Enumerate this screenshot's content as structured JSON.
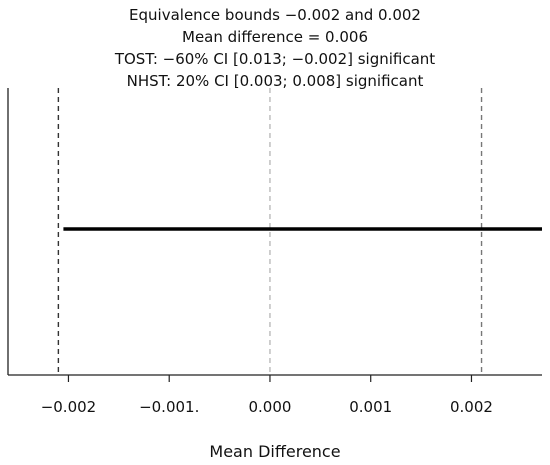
{
  "chart_data": {
    "type": "line",
    "title_lines": [
      "Equivalence bounds −0.002 and 0.002",
      "Mean difference = 0.006",
      "TOST: −60% CI [0.013; −0.002] significant",
      "NHST: 20% CI [0.003; 0.008] significant"
    ],
    "xlabel": "Mean Difference",
    "ylabel": "",
    "xlim": [
      -0.0026,
      0.0027
    ],
    "x_ticks": [
      {
        "value": -0.002,
        "label": "−0.002"
      },
      {
        "value": -0.001,
        "label": "−0.001."
      },
      {
        "value": 0.0,
        "label": "0.000"
      },
      {
        "value": 0.001,
        "label": "0.001"
      },
      {
        "value": 0.002,
        "label": "0.002"
      }
    ],
    "reference_lines": [
      {
        "name": "lower-bound",
        "x": -0.0021,
        "style": "dashed",
        "color": "#333333"
      },
      {
        "name": "zero",
        "x": 0.0,
        "style": "dashed",
        "color": "#bbbbbb"
      },
      {
        "name": "upper-bound",
        "x": 0.0021,
        "style": "dashed",
        "color": "#777777"
      }
    ],
    "interval": {
      "x_start": -0.00205,
      "x_end": 0.0027,
      "color": "#000000"
    },
    "grid": false
  }
}
